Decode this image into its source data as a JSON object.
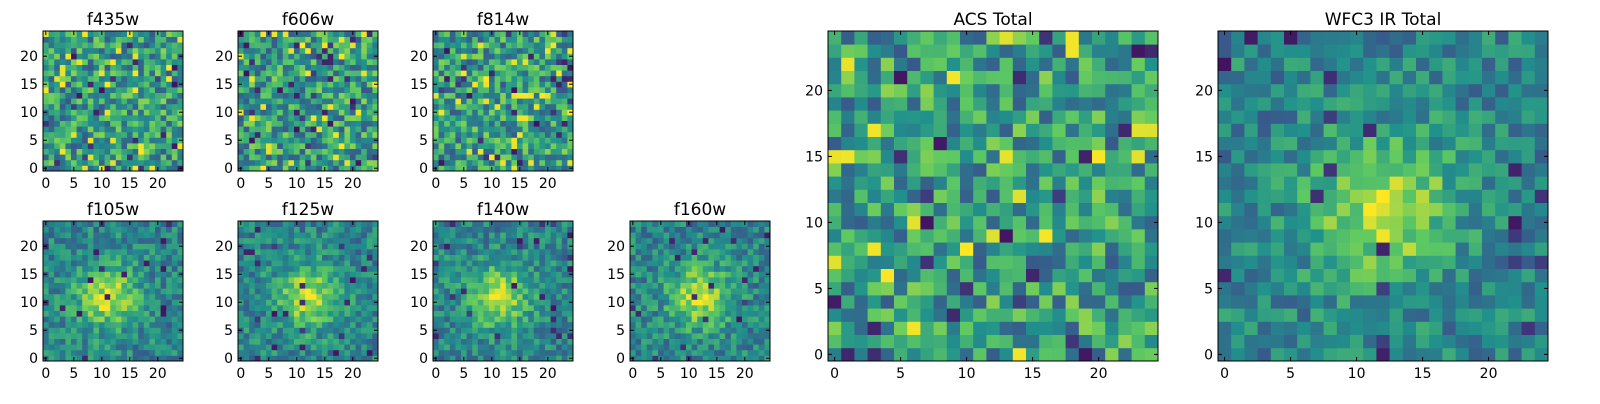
{
  "figure": {
    "description_free": true
  },
  "chart_data": [
    {
      "type": "heatmap",
      "id": "f435w",
      "title": "f435w",
      "grid": [
        25,
        25
      ],
      "xlim": [
        0,
        25
      ],
      "ylim": [
        0,
        25
      ],
      "xticks": [
        0,
        5,
        10,
        15,
        20
      ],
      "yticks": [
        0,
        5,
        10,
        15,
        20
      ],
      "texture": "noise",
      "seed": 11,
      "colormap": "viridis"
    },
    {
      "type": "heatmap",
      "id": "f606w",
      "title": "f606w",
      "grid": [
        25,
        25
      ],
      "xlim": [
        0,
        25
      ],
      "ylim": [
        0,
        25
      ],
      "xticks": [
        0,
        5,
        10,
        15,
        20
      ],
      "yticks": [
        0,
        5,
        10,
        15,
        20
      ],
      "texture": "noise",
      "seed": 22,
      "colormap": "viridis"
    },
    {
      "type": "heatmap",
      "id": "f814w",
      "title": "f814w",
      "grid": [
        25,
        25
      ],
      "xlim": [
        0,
        25
      ],
      "ylim": [
        0,
        25
      ],
      "xticks": [
        0,
        5,
        10,
        15,
        20
      ],
      "yticks": [
        0,
        5,
        10,
        15,
        20
      ],
      "texture": "noise",
      "seed": 33,
      "colormap": "viridis"
    },
    {
      "type": "heatmap",
      "id": "f105w",
      "title": "f105w",
      "grid": [
        25,
        25
      ],
      "xlim": [
        0,
        25
      ],
      "ylim": [
        0,
        25
      ],
      "xticks": [
        0,
        5,
        10,
        15,
        20
      ],
      "yticks": [
        0,
        5,
        10,
        15,
        20
      ],
      "texture": "blob",
      "blob_center": [
        11,
        11
      ],
      "seed": 44,
      "colormap": "viridis"
    },
    {
      "type": "heatmap",
      "id": "f125w",
      "title": "f125w",
      "grid": [
        25,
        25
      ],
      "xlim": [
        0,
        25
      ],
      "ylim": [
        0,
        25
      ],
      "xticks": [
        0,
        5,
        10,
        15,
        20
      ],
      "yticks": [
        0,
        5,
        10,
        15,
        20
      ],
      "texture": "blob",
      "blob_center": [
        12,
        11
      ],
      "seed": 55,
      "colormap": "viridis"
    },
    {
      "type": "heatmap",
      "id": "f140w",
      "title": "f140w",
      "grid": [
        25,
        25
      ],
      "xlim": [
        0,
        25
      ],
      "ylim": [
        0,
        25
      ],
      "xticks": [
        0,
        5,
        10,
        15,
        20
      ],
      "yticks": [
        0,
        5,
        10,
        15,
        20
      ],
      "texture": "blob",
      "blob_center": [
        11,
        11
      ],
      "seed": 66,
      "colormap": "viridis"
    },
    {
      "type": "heatmap",
      "id": "f160w",
      "title": "f160w",
      "grid": [
        25,
        25
      ],
      "xlim": [
        0,
        25
      ],
      "ylim": [
        0,
        25
      ],
      "xticks": [
        0,
        5,
        10,
        15,
        20
      ],
      "yticks": [
        0,
        5,
        10,
        15,
        20
      ],
      "texture": "blob",
      "blob_center": [
        12,
        11
      ],
      "seed": 77,
      "colormap": "viridis"
    },
    {
      "type": "heatmap",
      "id": "acs_total",
      "title": "ACS Total",
      "grid": [
        25,
        25
      ],
      "xlim": [
        0,
        25
      ],
      "ylim": [
        0,
        25
      ],
      "xticks": [
        0,
        5,
        10,
        15,
        20
      ],
      "yticks": [
        0,
        5,
        10,
        15,
        20
      ],
      "texture": "noise",
      "seed": 88,
      "colormap": "viridis"
    },
    {
      "type": "heatmap",
      "id": "wfc3_total",
      "title": "WFC3 IR Total",
      "grid": [
        25,
        25
      ],
      "xlim": [
        0,
        25
      ],
      "ylim": [
        0,
        25
      ],
      "xticks": [
        0,
        5,
        10,
        15,
        20
      ],
      "yticks": [
        0,
        5,
        10,
        15,
        20
      ],
      "texture": "blob",
      "blob_center": [
        12,
        11
      ],
      "seed": 99,
      "colormap": "viridis"
    }
  ]
}
